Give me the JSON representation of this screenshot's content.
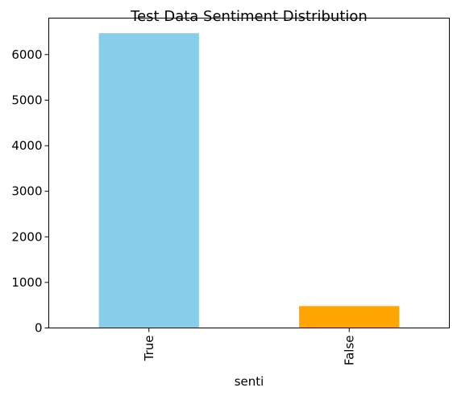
{
  "chart_data": {
    "type": "bar",
    "title": "Test Data Sentiment Distribution",
    "xlabel": "senti",
    "ylabel": "",
    "categories": [
      "True",
      "False"
    ],
    "values": [
      6470,
      480
    ],
    "colors": [
      "#87CEEB",
      "#FFA500"
    ],
    "ylim": [
      0,
      6800
    ],
    "yticks": [
      0,
      1000,
      2000,
      3000,
      4000,
      5000,
      6000
    ],
    "grid": false,
    "legend": "none"
  }
}
